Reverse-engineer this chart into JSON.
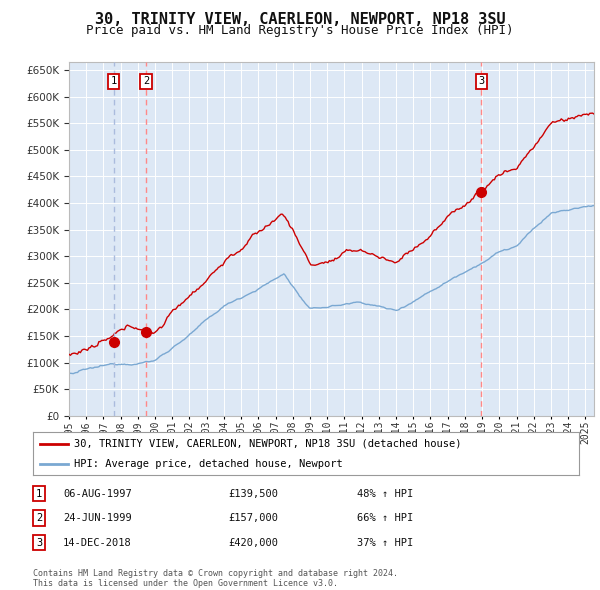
{
  "title": "30, TRINITY VIEW, CAERLEON, NEWPORT, NP18 3SU",
  "subtitle": "Price paid vs. HM Land Registry's House Price Index (HPI)",
  "title_fontsize": 11,
  "subtitle_fontsize": 9,
  "background_color": "#ffffff",
  "plot_background": "#dde8f5",
  "ylim": [
    0,
    665000
  ],
  "yticks": [
    0,
    50000,
    100000,
    150000,
    200000,
    250000,
    300000,
    350000,
    400000,
    450000,
    500000,
    550000,
    600000,
    650000
  ],
  "sale_dates": [
    1997.59,
    1999.48,
    2018.95
  ],
  "sale_prices": [
    139500,
    157000,
    420000
  ],
  "sale_labels": [
    "1",
    "2",
    "3"
  ],
  "sale_vline_styles": [
    "dashed_blue",
    "dashed_red",
    "dashed_red"
  ],
  "legend_entries": [
    "30, TRINITY VIEW, CAERLEON, NEWPORT, NP18 3SU (detached house)",
    "HPI: Average price, detached house, Newport"
  ],
  "table_rows": [
    [
      "1",
      "06-AUG-1997",
      "£139,500",
      "48% ↑ HPI"
    ],
    [
      "2",
      "24-JUN-1999",
      "£157,000",
      "66% ↑ HPI"
    ],
    [
      "3",
      "14-DEC-2018",
      "£420,000",
      "37% ↑ HPI"
    ]
  ],
  "footer": "Contains HM Land Registry data © Crown copyright and database right 2024.\nThis data is licensed under the Open Government Licence v3.0.",
  "red_line_color": "#cc0000",
  "blue_line_color": "#7aa8d2",
  "dashed_red_color": "#ff8888",
  "dashed_blue_color": "#aabbdd",
  "grid_color": "#ffffff",
  "label_color": "#333333"
}
